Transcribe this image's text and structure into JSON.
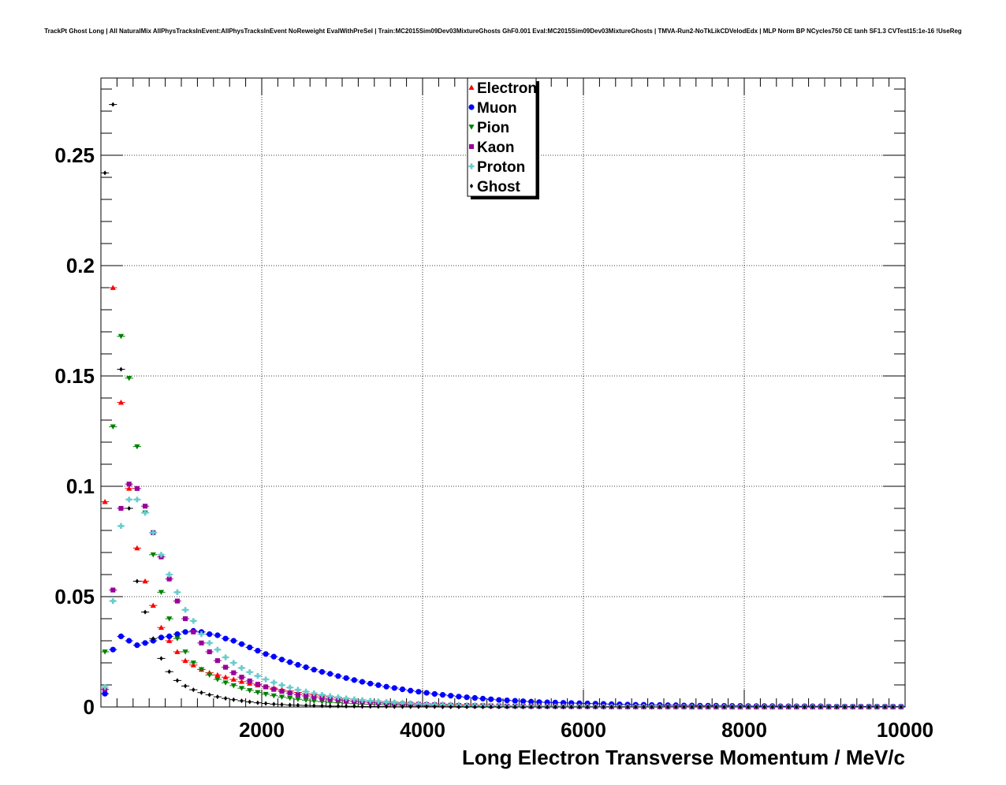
{
  "chart_data": {
    "type": "scatter",
    "title": "TrackPt Ghost Long | All NaturalMix AllPhysTracksInEvent:AllPhysTracksInEvent NoReweight EvalWithPreSel | Train:MC2015Sim09Dev03MixtureGhosts GhF0.001 Eval:MC2015Sim09Dev03MixtureGhosts | TMVA-Run2-NoTkLikCDVelodEdx | MLP Norm BP NCycles750 CE tanh SF1.3 CVTest15:1e-16 !UseReg",
    "xlabel": "Long Electron Transverse Momentum / MeV/c",
    "ylabel": "",
    "xlim": [
      0,
      10000
    ],
    "ylim": [
      0,
      0.285
    ],
    "x_ticks": [
      "2000",
      "4000",
      "6000",
      "8000",
      "10000"
    ],
    "x_tick_values": [
      2000,
      4000,
      6000,
      8000,
      10000
    ],
    "y_ticks": [
      "0",
      "0.05",
      "0.1",
      "0.15",
      "0.2",
      "0.25"
    ],
    "y_tick_values": [
      0,
      0.05,
      0.1,
      0.15,
      0.2,
      0.25
    ],
    "grid": true,
    "legend_position": "top-center",
    "x": [
      50,
      150,
      250,
      350,
      450,
      550,
      650,
      750,
      850,
      950,
      1050,
      1150,
      1250,
      1350,
      1450,
      1550,
      1650,
      1750,
      1850,
      1950,
      2050,
      2150,
      2250,
      2350,
      2450,
      2550,
      2650,
      2750,
      2850,
      2950,
      3050,
      3150,
      3250,
      3350,
      3450,
      3550,
      3650,
      3750,
      3850,
      3950,
      4050,
      4150,
      4250,
      4350,
      4450,
      4550,
      4650,
      4750,
      4850,
      4950,
      5050,
      5150,
      5250,
      5350,
      5450,
      5550,
      5650,
      5750,
      5850,
      5950,
      6050,
      6150,
      6250,
      6350,
      6450,
      6550,
      6650,
      6750,
      6850,
      6950,
      7050,
      7150,
      7250,
      7350,
      7450,
      7550,
      7650,
      7750,
      7850,
      7950,
      8050,
      8150,
      8250,
      8350,
      8450,
      8550,
      8650,
      8750,
      8850,
      8950,
      9050,
      9150,
      9250,
      9350,
      9450,
      9550,
      9650,
      9750,
      9850,
      9950
    ],
    "series": [
      {
        "name": "Electron",
        "color": "#ff0000",
        "marker": "triangle-up",
        "values": [
          0.093,
          0.19,
          0.138,
          0.099,
          0.072,
          0.057,
          0.046,
          0.036,
          0.03,
          0.025,
          0.021,
          0.019,
          0.017,
          0.0155,
          0.0145,
          0.0135,
          0.0125,
          0.0115,
          0.0107,
          0.0099,
          0.0092,
          0.0085,
          0.0078,
          0.0072,
          0.0066,
          0.006,
          0.0055,
          0.005,
          0.0046,
          0.0042,
          0.0038,
          0.0035,
          0.0032,
          0.0029,
          0.0026,
          0.0024,
          0.0022,
          0.002,
          0.0018,
          0.0016,
          0.0015,
          0.0014,
          0.0013,
          0.0012,
          0.0011,
          0.001,
          0.0009,
          0.0008,
          0.0007,
          0.0006,
          0.0006,
          0.0005,
          0.0005,
          0.0004,
          0.0004,
          0.0004,
          0.0003,
          0.0003,
          0.0003,
          0.0003,
          0.0002,
          0.0002,
          0.0002,
          0.0002,
          0.0002,
          0.0001,
          0.0001,
          0.0001,
          0.0001,
          0.0001,
          0.0001,
          0.0001,
          0.0001,
          0.0001,
          0.0001,
          0.0001,
          0,
          0,
          0,
          0,
          0,
          0,
          0,
          0,
          0,
          0,
          0,
          0,
          0,
          0,
          0,
          0,
          0,
          0,
          0,
          0,
          0,
          0,
          0,
          0
        ]
      },
      {
        "name": "Muon",
        "color": "#0000ff",
        "marker": "circle",
        "values": [
          0.006,
          0.026,
          0.032,
          0.03,
          0.028,
          0.029,
          0.03,
          0.0315,
          0.032,
          0.033,
          0.034,
          0.0345,
          0.034,
          0.033,
          0.0325,
          0.031,
          0.03,
          0.0285,
          0.027,
          0.0255,
          0.024,
          0.0228,
          0.0215,
          0.0203,
          0.0191,
          0.018,
          0.0169,
          0.0159,
          0.015,
          0.014,
          0.0131,
          0.0122,
          0.0114,
          0.0106,
          0.0099,
          0.0092,
          0.0086,
          0.008,
          0.0074,
          0.0069,
          0.0064,
          0.0059,
          0.0055,
          0.0051,
          0.0047,
          0.0044,
          0.0041,
          0.0038,
          0.0035,
          0.0032,
          0.003,
          0.0028,
          0.0026,
          0.0024,
          0.0022,
          0.0021,
          0.002,
          0.0019,
          0.0018,
          0.0017,
          0.0016,
          0.0015,
          0.0014,
          0.0013,
          0.0012,
          0.0011,
          0.001,
          0.001,
          0.0009,
          0.0009,
          0.0008,
          0.0008,
          0.0007,
          0.0007,
          0.0006,
          0.0006,
          0.0006,
          0.0005,
          0.0005,
          0.0005,
          0.0004,
          0.0004,
          0.0004,
          0.0004,
          0.0003,
          0.0003,
          0.0003,
          0.0003,
          0.0003,
          0.0003,
          0.0002,
          0.0002,
          0.0002,
          0.0002,
          0.0002,
          0.0002,
          0.0002,
          0.0002,
          0.0002,
          0.0002
        ]
      },
      {
        "name": "Pion",
        "color": "#008000",
        "marker": "triangle-down",
        "values": [
          0.025,
          0.127,
          0.168,
          0.149,
          0.118,
          0.088,
          0.069,
          0.052,
          0.04,
          0.031,
          0.025,
          0.02,
          0.017,
          0.0145,
          0.0125,
          0.011,
          0.0097,
          0.0085,
          0.0075,
          0.0066,
          0.0058,
          0.0051,
          0.0045,
          0.004,
          0.0035,
          0.0031,
          0.0027,
          0.0024,
          0.0021,
          0.0019,
          0.0017,
          0.0015,
          0.0013,
          0.0012,
          0.0011,
          0.001,
          0.0009,
          0.0008,
          0.0007,
          0.0006,
          0.0005,
          0.0005,
          0.0004,
          0.0004,
          0.0003,
          0.0003,
          0.0003,
          0.0002,
          0.0002,
          0.0002,
          0.0002,
          0.0002,
          0.0001,
          0.0001,
          0.0001,
          0.0001,
          0.0001,
          0.0001,
          0.0001,
          0.0001,
          0,
          0,
          0,
          0,
          0,
          0,
          0,
          0,
          0,
          0,
          0,
          0,
          0,
          0,
          0,
          0,
          0,
          0,
          0,
          0,
          0,
          0,
          0,
          0,
          0,
          0,
          0,
          0,
          0,
          0,
          0,
          0,
          0,
          0,
          0,
          0,
          0,
          0,
          0,
          0
        ]
      },
      {
        "name": "Kaon",
        "color": "#990099",
        "marker": "square",
        "values": [
          0.008,
          0.053,
          0.09,
          0.101,
          0.099,
          0.091,
          0.079,
          0.068,
          0.058,
          0.048,
          0.04,
          0.034,
          0.029,
          0.025,
          0.021,
          0.018,
          0.0155,
          0.0135,
          0.0118,
          0.0103,
          0.0091,
          0.008,
          0.0071,
          0.0063,
          0.0056,
          0.005,
          0.0045,
          0.004,
          0.0036,
          0.0032,
          0.0029,
          0.0026,
          0.0023,
          0.0021,
          0.0019,
          0.0017,
          0.0015,
          0.0014,
          0.0013,
          0.0012,
          0.0011,
          0.001,
          0.0009,
          0.0008,
          0.0007,
          0.0007,
          0.0006,
          0.0006,
          0.0005,
          0.0005,
          0.0004,
          0.0004,
          0.0004,
          0.0003,
          0.0003,
          0.0003,
          0.0003,
          0.0002,
          0.0002,
          0.0002,
          0.0002,
          0.0002,
          0.0002,
          0.0001,
          0.0001,
          0.0001,
          0.0001,
          0.0001,
          0.0001,
          0.0001,
          0.0001,
          0.0001,
          0.0001,
          0,
          0,
          0,
          0,
          0,
          0,
          0,
          0,
          0,
          0,
          0,
          0,
          0,
          0,
          0,
          0,
          0,
          0,
          0,
          0,
          0,
          0,
          0,
          0,
          0,
          0,
          0
        ]
      },
      {
        "name": "Proton",
        "color": "#66cccc",
        "marker": "cross",
        "values": [
          0.009,
          0.048,
          0.082,
          0.094,
          0.094,
          0.088,
          0.079,
          0.069,
          0.06,
          0.052,
          0.044,
          0.039,
          0.033,
          0.029,
          0.026,
          0.0225,
          0.02,
          0.0177,
          0.0158,
          0.0141,
          0.0125,
          0.0111,
          0.0099,
          0.0088,
          0.0078,
          0.007,
          0.0062,
          0.0055,
          0.0049,
          0.0044,
          0.0039,
          0.0035,
          0.0031,
          0.0028,
          0.0025,
          0.0022,
          0.002,
          0.0018,
          0.0016,
          0.0014,
          0.0013,
          0.0011,
          0.001,
          0.0009,
          0.0008,
          0.0007,
          0.0007,
          0.0006,
          0.0005,
          0.0005,
          0.0004,
          0.0004,
          0.0004,
          0.0003,
          0.0003,
          0.0003,
          0.0002,
          0.0002,
          0.0002,
          0.0002,
          0.0002,
          0.0001,
          0.0001,
          0.0001,
          0.0001,
          0.0001,
          0.0001,
          0.0001,
          0.0001,
          0.0001,
          0,
          0,
          0,
          0,
          0,
          0,
          0,
          0,
          0,
          0,
          0,
          0,
          0,
          0,
          0,
          0,
          0,
          0,
          0,
          0,
          0,
          0,
          0,
          0,
          0,
          0,
          0,
          0,
          0,
          0
        ]
      },
      {
        "name": "Ghost",
        "color": "#000000",
        "marker": "diamond",
        "values": [
          0.242,
          0.273,
          0.153,
          0.09,
          0.057,
          0.043,
          0.031,
          0.022,
          0.016,
          0.012,
          0.0095,
          0.0078,
          0.0065,
          0.0055,
          0.0046,
          0.0039,
          0.0033,
          0.0028,
          0.0023,
          0.0019,
          0.0016,
          0.0013,
          0.0011,
          0.0009,
          0.0008,
          0.0007,
          0.0006,
          0.0005,
          0.0004,
          0.0004,
          0.0003,
          0.0003,
          0.0002,
          0.0002,
          0.0002,
          0.0002,
          0.0001,
          0.0001,
          0.0001,
          0.0001,
          0.0001,
          0.0001,
          0,
          0,
          0,
          0,
          0,
          0,
          0,
          0,
          0,
          0,
          0,
          0,
          0,
          0,
          0,
          0,
          0,
          0,
          0,
          0,
          0,
          0,
          0,
          0,
          0,
          0,
          0,
          0,
          0,
          0,
          0,
          0,
          0,
          0,
          0,
          0,
          0,
          0,
          0,
          0,
          0,
          0,
          0,
          0,
          0,
          0,
          0,
          0,
          0,
          0,
          0,
          0,
          0,
          0,
          0,
          0,
          0,
          0
        ]
      }
    ]
  }
}
